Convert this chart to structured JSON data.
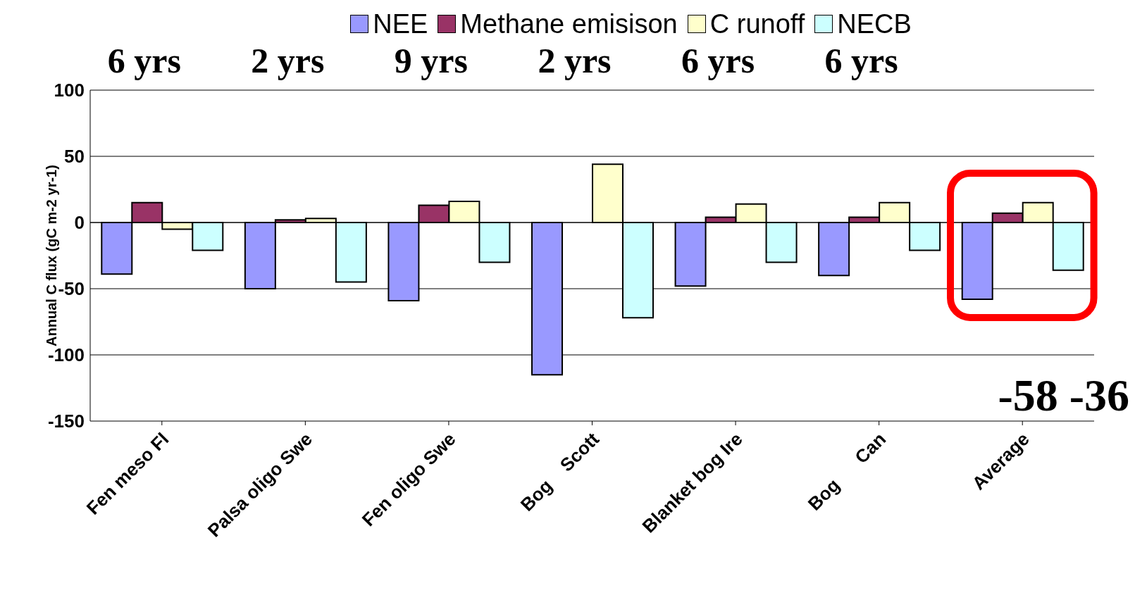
{
  "chart_data": {
    "type": "bar",
    "ylabel": "Annual C flux (gC m-2 yr-1)",
    "categories": [
      "Fen meso Fl",
      "Palsa oligo Swe",
      "Fen oligo Swe",
      "Bog    Scott",
      "Blanket bog Ire",
      "Bog      Can",
      "Average"
    ],
    "series": [
      {
        "name": "NEE",
        "color": "#9999ff",
        "values": [
          -39,
          -50,
          -59,
          -115,
          -48,
          -40,
          -58
        ]
      },
      {
        "name": "Methane emisison",
        "color": "#993366",
        "values": [
          15,
          2,
          13,
          null,
          4,
          4,
          7
        ]
      },
      {
        "name": "C runoff",
        "color": "#ffffcc",
        "values": [
          -5,
          3,
          16,
          44,
          14,
          15,
          15
        ]
      },
      {
        "name": "NECB",
        "color": "#ccffff",
        "values": [
          -21,
          -45,
          -30,
          -72,
          -30,
          -21,
          -36
        ]
      }
    ],
    "ylim": [
      -150,
      100
    ],
    "yticks": [
      -150,
      -100,
      -50,
      0,
      50,
      100
    ],
    "grid": "y",
    "legend": "top",
    "annotations": [
      "6 yrs",
      "2 yrs",
      "9 yrs",
      "2 yrs",
      "6 yrs",
      "6 yrs",
      "-58 -36"
    ]
  }
}
